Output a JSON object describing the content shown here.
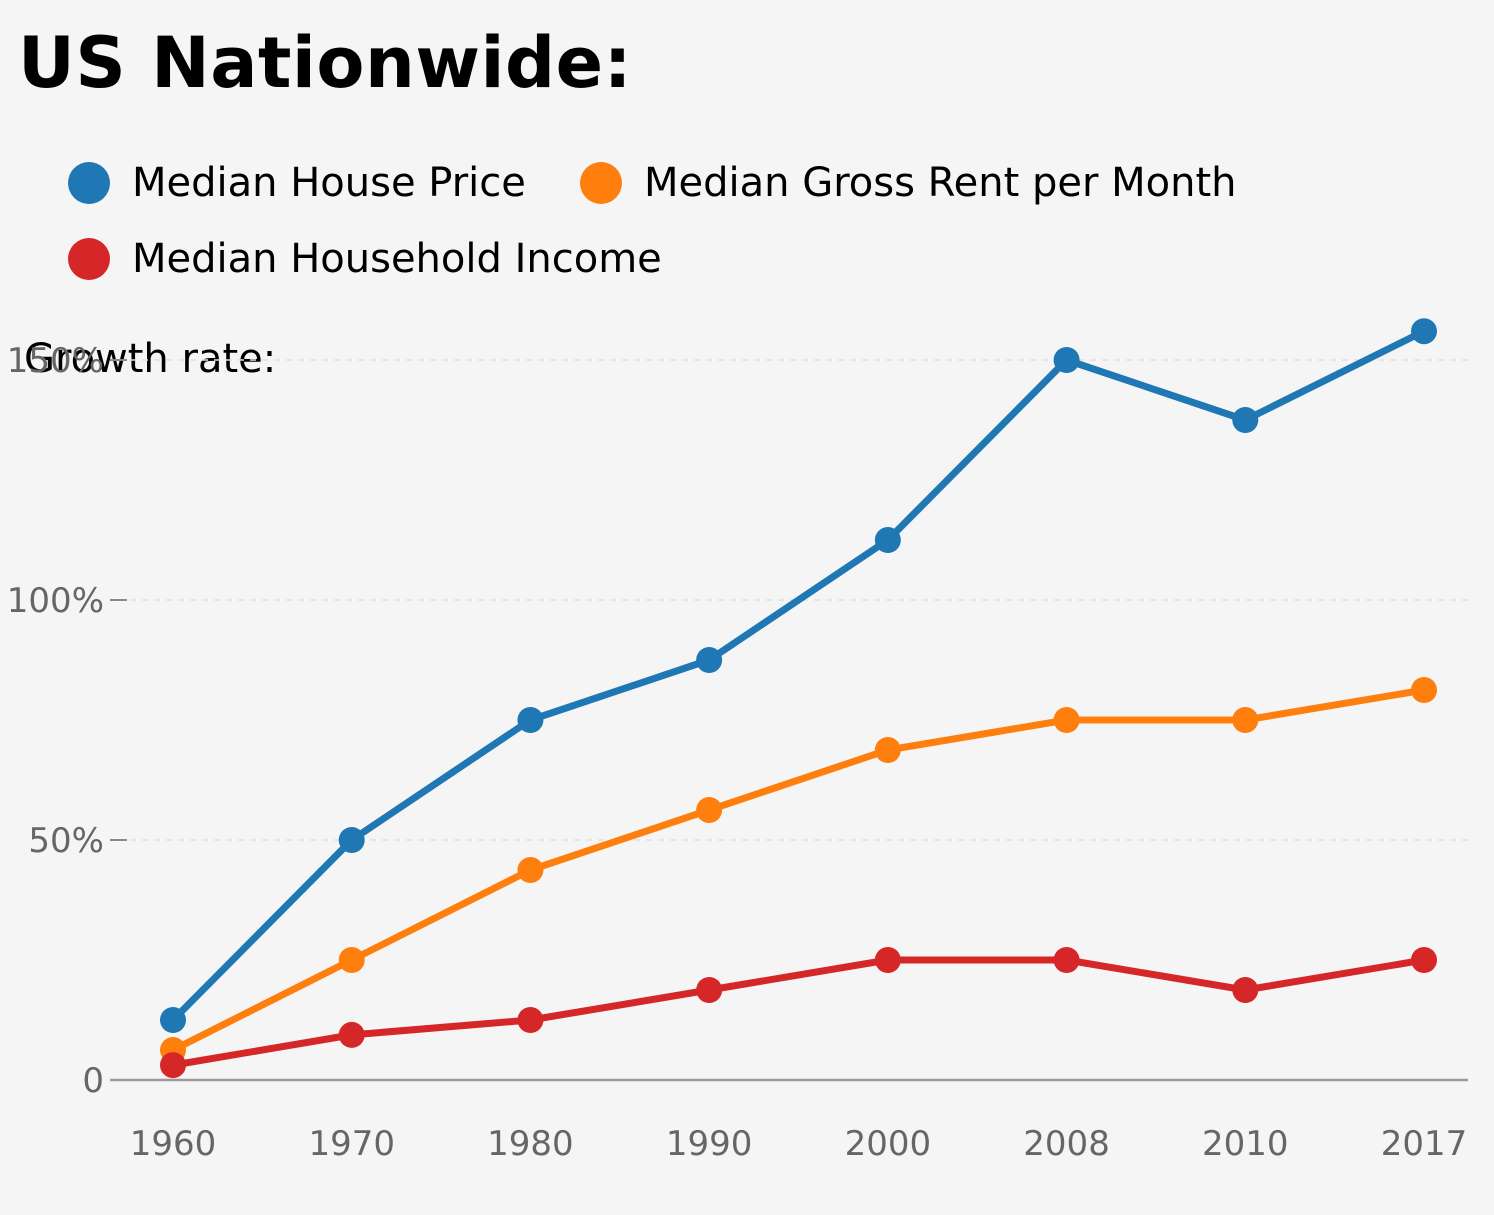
{
  "title": "US Nationwide:",
  "growth_label": "Growth rate:",
  "legend": [
    {
      "label": "Median House Price",
      "color": "#1f77b4"
    },
    {
      "label": "Median Gross Rent per Month",
      "color": "#ff7f0e"
    },
    {
      "label": "Median Household Income",
      "color": "#d62728"
    }
  ],
  "chart_data": {
    "type": "line",
    "title": "US Nationwide:",
    "ylabel": "Growth rate:",
    "x": [
      "1960",
      "1970",
      "1980",
      "1990",
      "2000",
      "2008",
      "2010",
      "2017"
    ],
    "yticks": [
      0,
      50,
      100,
      150
    ],
    "ytick_labels": [
      "0",
      "50%",
      "100%",
      "150%"
    ],
    "ylim": [
      0,
      175
    ],
    "grid": true,
    "legend_position": "top-left",
    "series": [
      {
        "name": "Median House Price",
        "color": "#1f77b4",
        "values": [
          12.5,
          50,
          75,
          87.5,
          112.5,
          150,
          137.5,
          156
        ]
      },
      {
        "name": "Median Gross Rent per Month",
        "color": "#ff7f0e",
        "values": [
          6.25,
          25,
          43.75,
          56.25,
          68.75,
          75,
          75,
          81.25
        ]
      },
      {
        "name": "Median Household Income",
        "color": "#d62728",
        "values": [
          3.1,
          9.4,
          12.5,
          18.75,
          25,
          25,
          18.75,
          25
        ]
      }
    ]
  }
}
